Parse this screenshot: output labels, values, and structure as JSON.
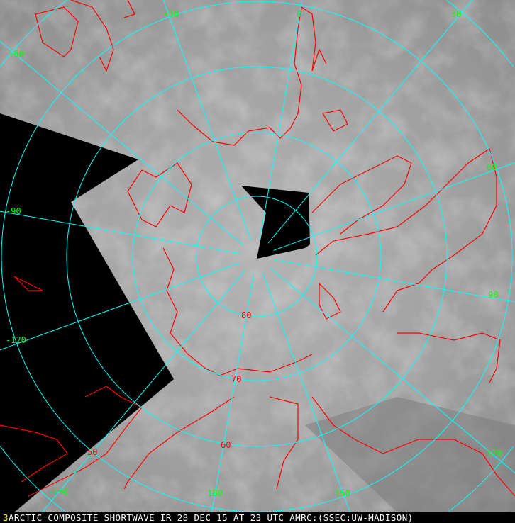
{
  "caption": {
    "frame_number": "3",
    "text": "ARCTIC COMPOSITE SHORTWAVE IR 28 DEC 15 AT 23 UTC AMRC:(SSEC:UW-MADISON)"
  },
  "map": {
    "projection": "polar stereographic, north pole",
    "longitude_labels": [
      "0",
      "30",
      "60",
      "90",
      "120",
      "150",
      "180",
      "-150",
      "-120",
      "-90",
      "-60",
      "-30"
    ],
    "latitude_labels": [
      "80",
      "70",
      "60",
      "50"
    ],
    "colors": {
      "graticule": "#00ffff",
      "coastlines": "#ff0000",
      "longitude_label": "#00ff00",
      "latitude_label": "#ff0000",
      "no_data": "#000000",
      "caption_text": "#ffffff",
      "frame_number": "#ffff00"
    }
  }
}
